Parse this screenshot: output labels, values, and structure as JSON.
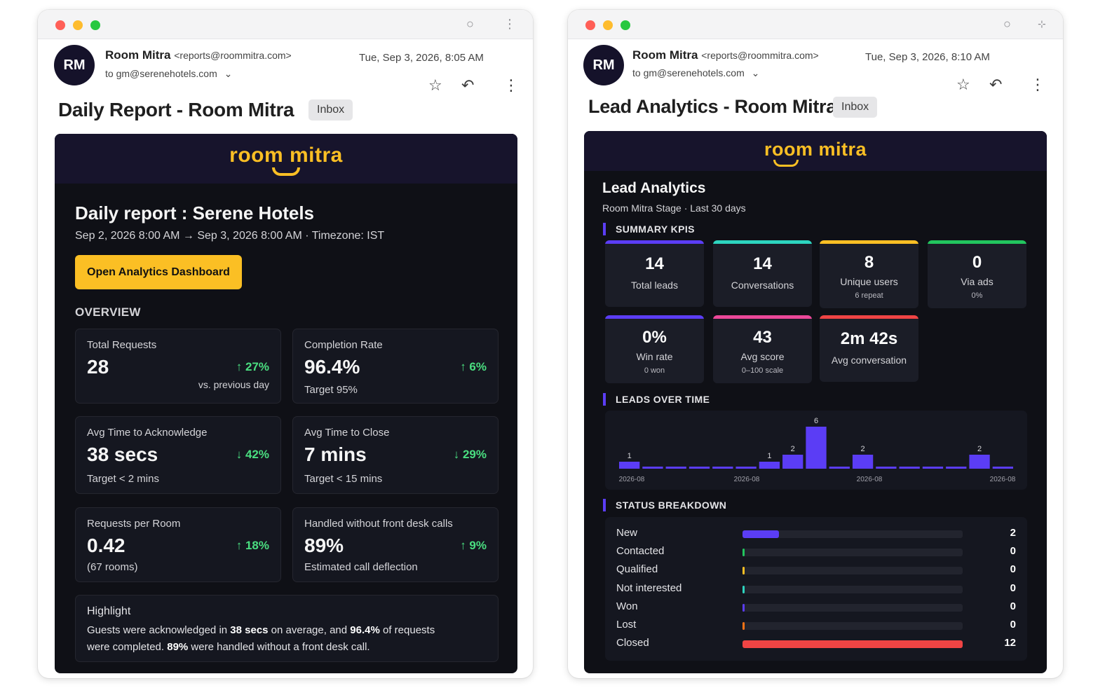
{
  "left_email": {
    "avatar": "RM",
    "sender_name": "Room Mitra",
    "sender_email": "<reports@roommitra.com>",
    "to": "to gm@serenehotels.com",
    "date": "Tue, Sep 3, 2026, 8:05 AM",
    "subject": "Daily Report - Room Mitra",
    "badge": "Inbox",
    "logo": "room mitra",
    "heading": "Daily report : Serene Hotels",
    "range": "Sep 2, 2026 8:00 AM → Sep 3, 2026 8:00 AM · Timezone: IST",
    "cta": "Open Analytics Dashboard",
    "overview_title": "OVERVIEW",
    "cards": [
      {
        "label": "Total Requests",
        "value": "28",
        "change": "↑ 27%",
        "note": "vs. previous day"
      },
      {
        "label": "Completion Rate",
        "value": "96.4%",
        "change": "↑ 6%",
        "note": "Target 95%"
      },
      {
        "label": "Avg Time to Acknowledge",
        "value": "38 secs",
        "change": "↓ 42%",
        "note": "Target < 2 mins"
      },
      {
        "label": "Avg Time to Close",
        "value": "7 mins",
        "change": "↓ 29%",
        "note": "Target < 15 mins"
      },
      {
        "label": "Requests per Room",
        "value": "0.42",
        "change": "↑ 18%",
        "note": "(67 rooms)"
      },
      {
        "label": "Handled without front desk calls",
        "value": "89%",
        "change": "↑ 9%",
        "note": "Estimated call deflection"
      }
    ],
    "highlight": {
      "title": "Highlight",
      "t1": "Guests were acknowledged in ",
      "b1": "38 secs",
      "t2": " on average, and ",
      "b2": "96.4%",
      "t3": " of requests",
      "t4": "were completed. ",
      "b3": "89%",
      "t5": " were handled without a front desk call."
    }
  },
  "right_email": {
    "avatar": "RM",
    "sender_name": "Room Mitra",
    "sender_email": "<reports@roommitra.com>",
    "to": "to gm@serenehotels.com",
    "date": "Tue, Sep 3, 2026, 8:10 AM",
    "subject": "Lead Analytics - Room Mitra",
    "badge": "Inbox",
    "logo": "room mitra",
    "heading": "Lead Analytics",
    "subheading": "Room Mitra Stage · Last 30 days",
    "kpi_title": "SUMMARY KPIS",
    "kpis": [
      {
        "value": "14",
        "label": "Total leads",
        "sub": "",
        "color": "#5b3df5"
      },
      {
        "value": "14",
        "label": "Conversations",
        "sub": "",
        "color": "#2dd4bf"
      },
      {
        "value": "8",
        "label": "Unique users",
        "sub": "6 repeat",
        "color": "#fbbf24"
      },
      {
        "value": "0",
        "label": "Via ads",
        "sub": "0%",
        "color": "#22c55e"
      },
      {
        "value": "0%",
        "label": "Win rate",
        "sub": "0 won",
        "color": "#5b3df5"
      },
      {
        "value": "43",
        "label": "Avg score",
        "sub": "0–100 scale",
        "color": "#ec4899"
      },
      {
        "value": "2m 42s",
        "label": "Avg conversation",
        "sub": "",
        "color": "#ef4444"
      }
    ],
    "leads_title": "LEADS OVER TIME",
    "status_title": "STATUS BREAKDOWN",
    "status": [
      {
        "name": "New",
        "count": "2",
        "value": 2,
        "color": "#5b3df5"
      },
      {
        "name": "Contacted",
        "count": "0",
        "value": 0,
        "color": "#22c55e"
      },
      {
        "name": "Qualified",
        "count": "0",
        "value": 0,
        "color": "#fbbf24"
      },
      {
        "name": "Not interested",
        "count": "0",
        "value": 0,
        "color": "#2dd4bf"
      },
      {
        "name": "Won",
        "count": "0",
        "value": 0,
        "color": "#5b3df5"
      },
      {
        "name": "Lost",
        "count": "0",
        "value": 0,
        "color": "#f97316"
      },
      {
        "name": "Closed",
        "count": "12",
        "value": 12,
        "color": "#ef4444"
      }
    ],
    "status_max": 12
  },
  "chart_data": {
    "type": "bar",
    "title": "LEADS OVER TIME",
    "values": [
      1,
      0,
      0,
      0,
      0,
      0,
      1,
      2,
      6,
      0,
      2,
      0,
      0,
      0,
      0,
      2,
      0
    ],
    "data_labels": [
      "1",
      "",
      "",
      "",
      "",
      "",
      "1",
      "2",
      "6",
      "",
      "2",
      "",
      "",
      "",
      "",
      "2",
      ""
    ],
    "x_tick_labels": [
      "2026-08",
      "2026-08",
      "2026-08",
      "2026-08"
    ],
    "bar_color": "#5b3df5"
  }
}
